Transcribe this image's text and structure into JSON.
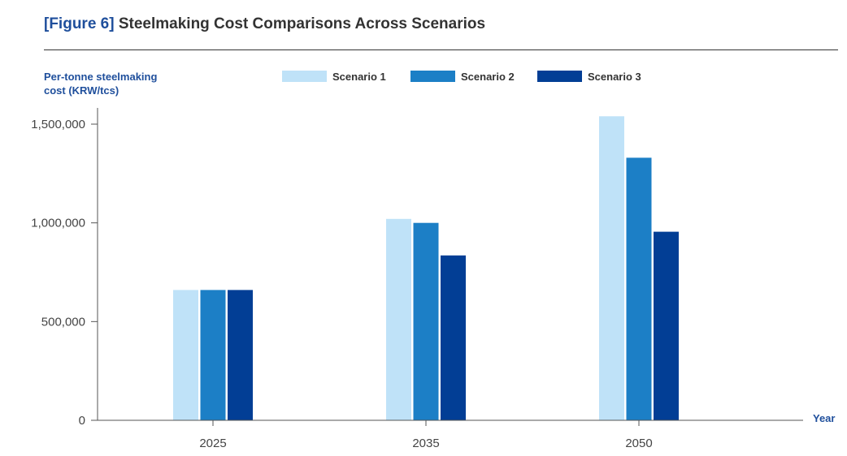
{
  "header": {
    "figure_label": "[Figure 6]",
    "title": "Steelmaking Cost Comparisons Across Scenarios"
  },
  "colors": {
    "scenario1": "#bfe2f8",
    "scenario2": "#1c7fc6",
    "scenario3": "#023e95",
    "axis_text": "#1f4f9c"
  },
  "chart_data": {
    "type": "bar",
    "title": "Steelmaking Cost Comparisons Across Scenarios",
    "ylabel": [
      "Per-tonne steelmaking",
      "cost (KRW/tcs)"
    ],
    "xlabel": "Year",
    "categories": [
      "2025",
      "2035",
      "2050"
    ],
    "ylim": [
      0,
      1550000
    ],
    "yticks": [
      0,
      500000,
      1000000,
      1500000
    ],
    "ytick_labels": [
      "0",
      "500,000",
      "1,000,000",
      "1,500,000"
    ],
    "grid": false,
    "legend_position": "top",
    "series": [
      {
        "name": "Scenario 1",
        "values": [
          660000,
          1020000,
          1540000
        ]
      },
      {
        "name": "Scenario 2",
        "values": [
          660000,
          1000000,
          1330000
        ]
      },
      {
        "name": "Scenario 3",
        "values": [
          660000,
          835000,
          955000
        ]
      }
    ]
  }
}
